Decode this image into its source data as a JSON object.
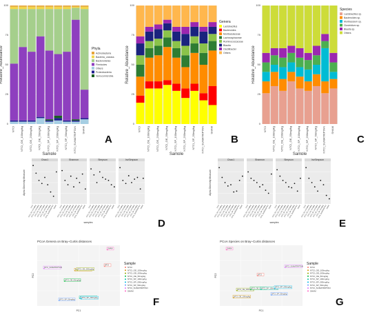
{
  "labels": {
    "A": "A",
    "B": "B",
    "C": "C",
    "D": "D",
    "E": "E",
    "F": "F",
    "G": "G"
  },
  "samples": [
    "NTCI",
    "NTCI_OE_100mg/kg",
    "NTCI_OE_200mg/kg",
    "NTCI_OE_50mg/kg",
    "NTCI_SP_100mg/kg",
    "NTCI_SP_200mg/kg",
    "NTCI_SP_50mg/kg",
    "NTCI_SUMATRIPTAN",
    "SHAM"
  ],
  "chart_data": [
    {
      "type": "bar",
      "panel": "A",
      "ylabel": "Relative_Abundance",
      "xlabel": "Sample",
      "legend_title": "Phyla",
      "ylim": [
        0,
        100
      ],
      "categories": [
        "NTCI",
        "NTCI_OE_100mg/kg",
        "NTCI_OE_200mg/kg",
        "NTCI_OE_50mg/kg",
        "NTCI_SP_100mg/kg",
        "NTCI_SP_200mg/kg",
        "NTCI_SP_50mg/kg",
        "NTCI_SUMATRIPTAN",
        "SHAM"
      ],
      "series": [
        {
          "name": "Others",
          "color": "#a6cee3",
          "values": [
            2,
            2,
            2,
            5,
            2,
            3,
            2,
            2,
            4
          ]
        },
        {
          "name": "Proteobacteria",
          "color": "#1f1f8f",
          "values": [
            1,
            1,
            1,
            1,
            1,
            2,
            1,
            1,
            1
          ]
        },
        {
          "name": "Verrucomicrobia",
          "color": "#1b5e20",
          "values": [
            0,
            0,
            0,
            0,
            1,
            2,
            0,
            1,
            0
          ]
        },
        {
          "name": "Firmicutes",
          "color": "#8e3fbf",
          "values": [
            48,
            62,
            58,
            68,
            58,
            52,
            58,
            84,
            24
          ]
        },
        {
          "name": "Bacteroidetes",
          "color": "#a5cf8c",
          "values": [
            46,
            32,
            36,
            23,
            35,
            38,
            36,
            10,
            68
          ]
        },
        {
          "name": "Bacteria_unclass",
          "color": "#f2d64b",
          "values": [
            2,
            2,
            2,
            2,
            2,
            2,
            2,
            1,
            2
          ]
        },
        {
          "name": "Actinobacteria",
          "color": "#e6a53a",
          "values": [
            1,
            1,
            1,
            1,
            1,
            1,
            1,
            1,
            1
          ]
        }
      ]
    },
    {
      "type": "bar",
      "panel": "B",
      "ylabel": "Relative_Abundance",
      "xlabel": "Sample",
      "legend_title": "Genera",
      "ylim": [
        0,
        100
      ],
      "categories": [
        "NTCI",
        "NTCI_OE_100mg/kg",
        "NTCI_OE_200mg/kg",
        "NTCI_OE_50mg/kg",
        "NTCI_SP_100mg/kg",
        "NTCI_SP_200mg/kg",
        "NTCI_SP_50mg/kg",
        "NTCI_SUMATRIPTAN",
        "SHAM"
      ],
      "series": [
        {
          "name": "Lactobacillus",
          "color": "#ffff00",
          "values": [
            18,
            30,
            30,
            33,
            28,
            22,
            28,
            20,
            16
          ]
        },
        {
          "name": "Bacteroides",
          "color": "#ff0000",
          "values": [
            6,
            6,
            6,
            4,
            6,
            8,
            6,
            6,
            16
          ]
        },
        {
          "name": "Muribaculaceae",
          "color": "#ff8c00",
          "values": [
            16,
            20,
            22,
            28,
            22,
            18,
            26,
            24,
            30
          ]
        },
        {
          "name": "Lachnospiraceae",
          "color": "#2e7d32",
          "values": [
            10,
            8,
            8,
            8,
            8,
            10,
            8,
            10,
            8
          ]
        },
        {
          "name": "Ruminococcaceae",
          "color": "#8bc34a",
          "values": [
            8,
            6,
            6,
            6,
            6,
            8,
            6,
            8,
            6
          ]
        },
        {
          "name": "Blautia",
          "color": "#1a237e",
          "values": [
            10,
            8,
            8,
            6,
            8,
            10,
            8,
            10,
            6
          ]
        },
        {
          "name": "Oscillibacter",
          "color": "#9c27b0",
          "values": [
            6,
            4,
            4,
            3,
            4,
            6,
            4,
            4,
            4
          ]
        },
        {
          "name": "Others",
          "color": "#ffb74d",
          "values": [
            26,
            18,
            16,
            12,
            18,
            18,
            14,
            18,
            14
          ]
        }
      ]
    },
    {
      "type": "bar",
      "panel": "C",
      "ylabel": "Relative_Abundance",
      "xlabel": "Sample",
      "legend_title": "Species",
      "ylim": [
        0,
        100
      ],
      "categories": [
        "NTCI",
        "NTCI_OE_100mg/kg",
        "NTCI_OE_200mg/kg",
        "NTCI_OE_50mg/kg",
        "NTCI_SP_100mg/kg",
        "NTCI_SP_200mg/kg",
        "NTCI_SP_50mg/kg",
        "NTCI_SUMATRIPTAN",
        "SHAM"
      ],
      "series": [
        {
          "name": "Lactobacillus sp.",
          "color": "#e8a090",
          "values": [
            26,
            32,
            28,
            36,
            30,
            28,
            32,
            26,
            30
          ]
        },
        {
          "name": "Bacteroides sp.",
          "color": "#ff8c00",
          "values": [
            10,
            12,
            10,
            8,
            10,
            8,
            10,
            10,
            8
          ]
        },
        {
          "name": "Muribaculum sp.",
          "color": "#00bcd4",
          "values": [
            8,
            6,
            10,
            8,
            8,
            10,
            8,
            28,
            6
          ]
        },
        {
          "name": "Clostridium sp.",
          "color": "#4caf50",
          "values": [
            8,
            8,
            8,
            8,
            8,
            8,
            8,
            6,
            8
          ]
        },
        {
          "name": "Blautia sp.",
          "color": "#9c27b0",
          "values": [
            8,
            6,
            8,
            6,
            8,
            6,
            8,
            6,
            8
          ]
        },
        {
          "name": "Others",
          "color": "#cddc39",
          "values": [
            40,
            36,
            36,
            34,
            36,
            40,
            34,
            24,
            40
          ]
        }
      ]
    },
    {
      "type": "scatter",
      "panel": "D",
      "ylabel": "Alpha Diversity Measure",
      "xlabel": "samples",
      "facets": [
        "Chao1",
        "Shannon",
        "Simpson",
        "InvSimpson"
      ],
      "points": [
        [
          0.9,
          0.72,
          0.55,
          0.48,
          0.62,
          0.45,
          0.28,
          0.18,
          0.75
        ],
        [
          0.78,
          0.55,
          0.45,
          0.65,
          0.4,
          0.6,
          0.5,
          0.7,
          0.35
        ],
        [
          0.82,
          0.68,
          0.5,
          0.75,
          0.62,
          0.58,
          0.55,
          0.45,
          0.4
        ],
        [
          0.85,
          0.55,
          0.48,
          0.66,
          0.5,
          0.58,
          0.62,
          0.35,
          0.6
        ]
      ]
    },
    {
      "type": "scatter",
      "panel": "E",
      "ylabel": "Alpha Diversity Measure",
      "xlabel": "samples",
      "facets": [
        "Chao1",
        "Shannon",
        "Simpson",
        "InvSimpson"
      ],
      "points": [
        [
          0.85,
          0.62,
          0.5,
          0.42,
          0.45,
          0.28,
          0.3,
          0.55,
          0.65
        ],
        [
          0.75,
          0.6,
          0.55,
          0.5,
          0.4,
          0.45,
          0.32,
          0.25,
          0.7
        ],
        [
          0.8,
          0.65,
          0.55,
          0.5,
          0.4,
          0.38,
          0.48,
          0.3,
          0.6
        ],
        [
          0.85,
          0.6,
          0.5,
          0.4,
          0.3,
          0.55,
          0.45,
          0.2,
          0.12
        ]
      ]
    },
    {
      "type": "scatter",
      "panel": "F",
      "title": "PCoA Genera on Bray–Curtis distances",
      "xlabel": "PC1",
      "ylabel": "PC2",
      "legend_title": "Sample",
      "points": [
        {
          "label": "NTCI",
          "x": 0.38,
          "y": 0.62,
          "color": "#f8766d"
        },
        {
          "label": "NTCI_OE_100mg/kg",
          "x": -0.05,
          "y": 0.54,
          "color": "#d39200"
        },
        {
          "label": "NTCI_OE_200mg/kg",
          "x": -0.02,
          "y": 0.55,
          "color": "#93aa00"
        },
        {
          "label": "NTCI_OE_50mg/kg",
          "x": -0.2,
          "y": 0.35,
          "color": "#00ba38"
        },
        {
          "label": "NTCI_SP_100mg/kg",
          "x": 0.02,
          "y": 0.04,
          "color": "#00c19f"
        },
        {
          "label": "NTCI_SP_200mg/kg",
          "x": 0.04,
          "y": 0.03,
          "color": "#00b9e3"
        },
        {
          "label": "NTCI_SP_50mg/kg",
          "x": -0.28,
          "y": 0.0,
          "color": "#619cff"
        },
        {
          "label": "NTCI_SUMATRIPTAN",
          "x": -0.5,
          "y": 0.58,
          "color": "#db72fb"
        },
        {
          "label": "SHAM",
          "x": 0.42,
          "y": 0.92,
          "color": "#ff61c3"
        }
      ],
      "xlim": [
        -0.6,
        0.6
      ],
      "ylim": [
        -0.1,
        1.0
      ]
    },
    {
      "type": "scatter",
      "panel": "G",
      "title": "PCoA Species on Bray–Curtis distances",
      "xlabel": "PC1",
      "ylabel": "PC2",
      "legend_title": "Sample",
      "points": [
        {
          "label": "NTCI",
          "x": -0.05,
          "y": 0.45,
          "color": "#f8766d"
        },
        {
          "label": "NTCI_OE_100mg/kg",
          "x": -0.4,
          "y": 0.05,
          "color": "#d39200"
        },
        {
          "label": "NTCI_OE_200mg/kg",
          "x": -0.35,
          "y": 0.18,
          "color": "#93aa00"
        },
        {
          "label": "NTCI_OE_50mg/kg",
          "x": -0.15,
          "y": 0.2,
          "color": "#00ba38"
        },
        {
          "label": "NTCI_SP_100mg/kg",
          "x": 0.0,
          "y": 0.2,
          "color": "#00c19f"
        },
        {
          "label": "NTCI_SP_200mg/kg",
          "x": 0.2,
          "y": 0.22,
          "color": "#00b9e3"
        },
        {
          "label": "NTCI_SP_50mg/kg",
          "x": 0.15,
          "y": 0.1,
          "color": "#619cff"
        },
        {
          "label": "NTCI_SUMATRIPTAN",
          "x": 0.35,
          "y": 0.6,
          "color": "#db72fb"
        },
        {
          "label": "SHAM",
          "x": -0.5,
          "y": 0.92,
          "color": "#ff61c3"
        }
      ],
      "xlim": [
        -0.6,
        0.6
      ],
      "ylim": [
        -0.1,
        1.0
      ]
    }
  ]
}
